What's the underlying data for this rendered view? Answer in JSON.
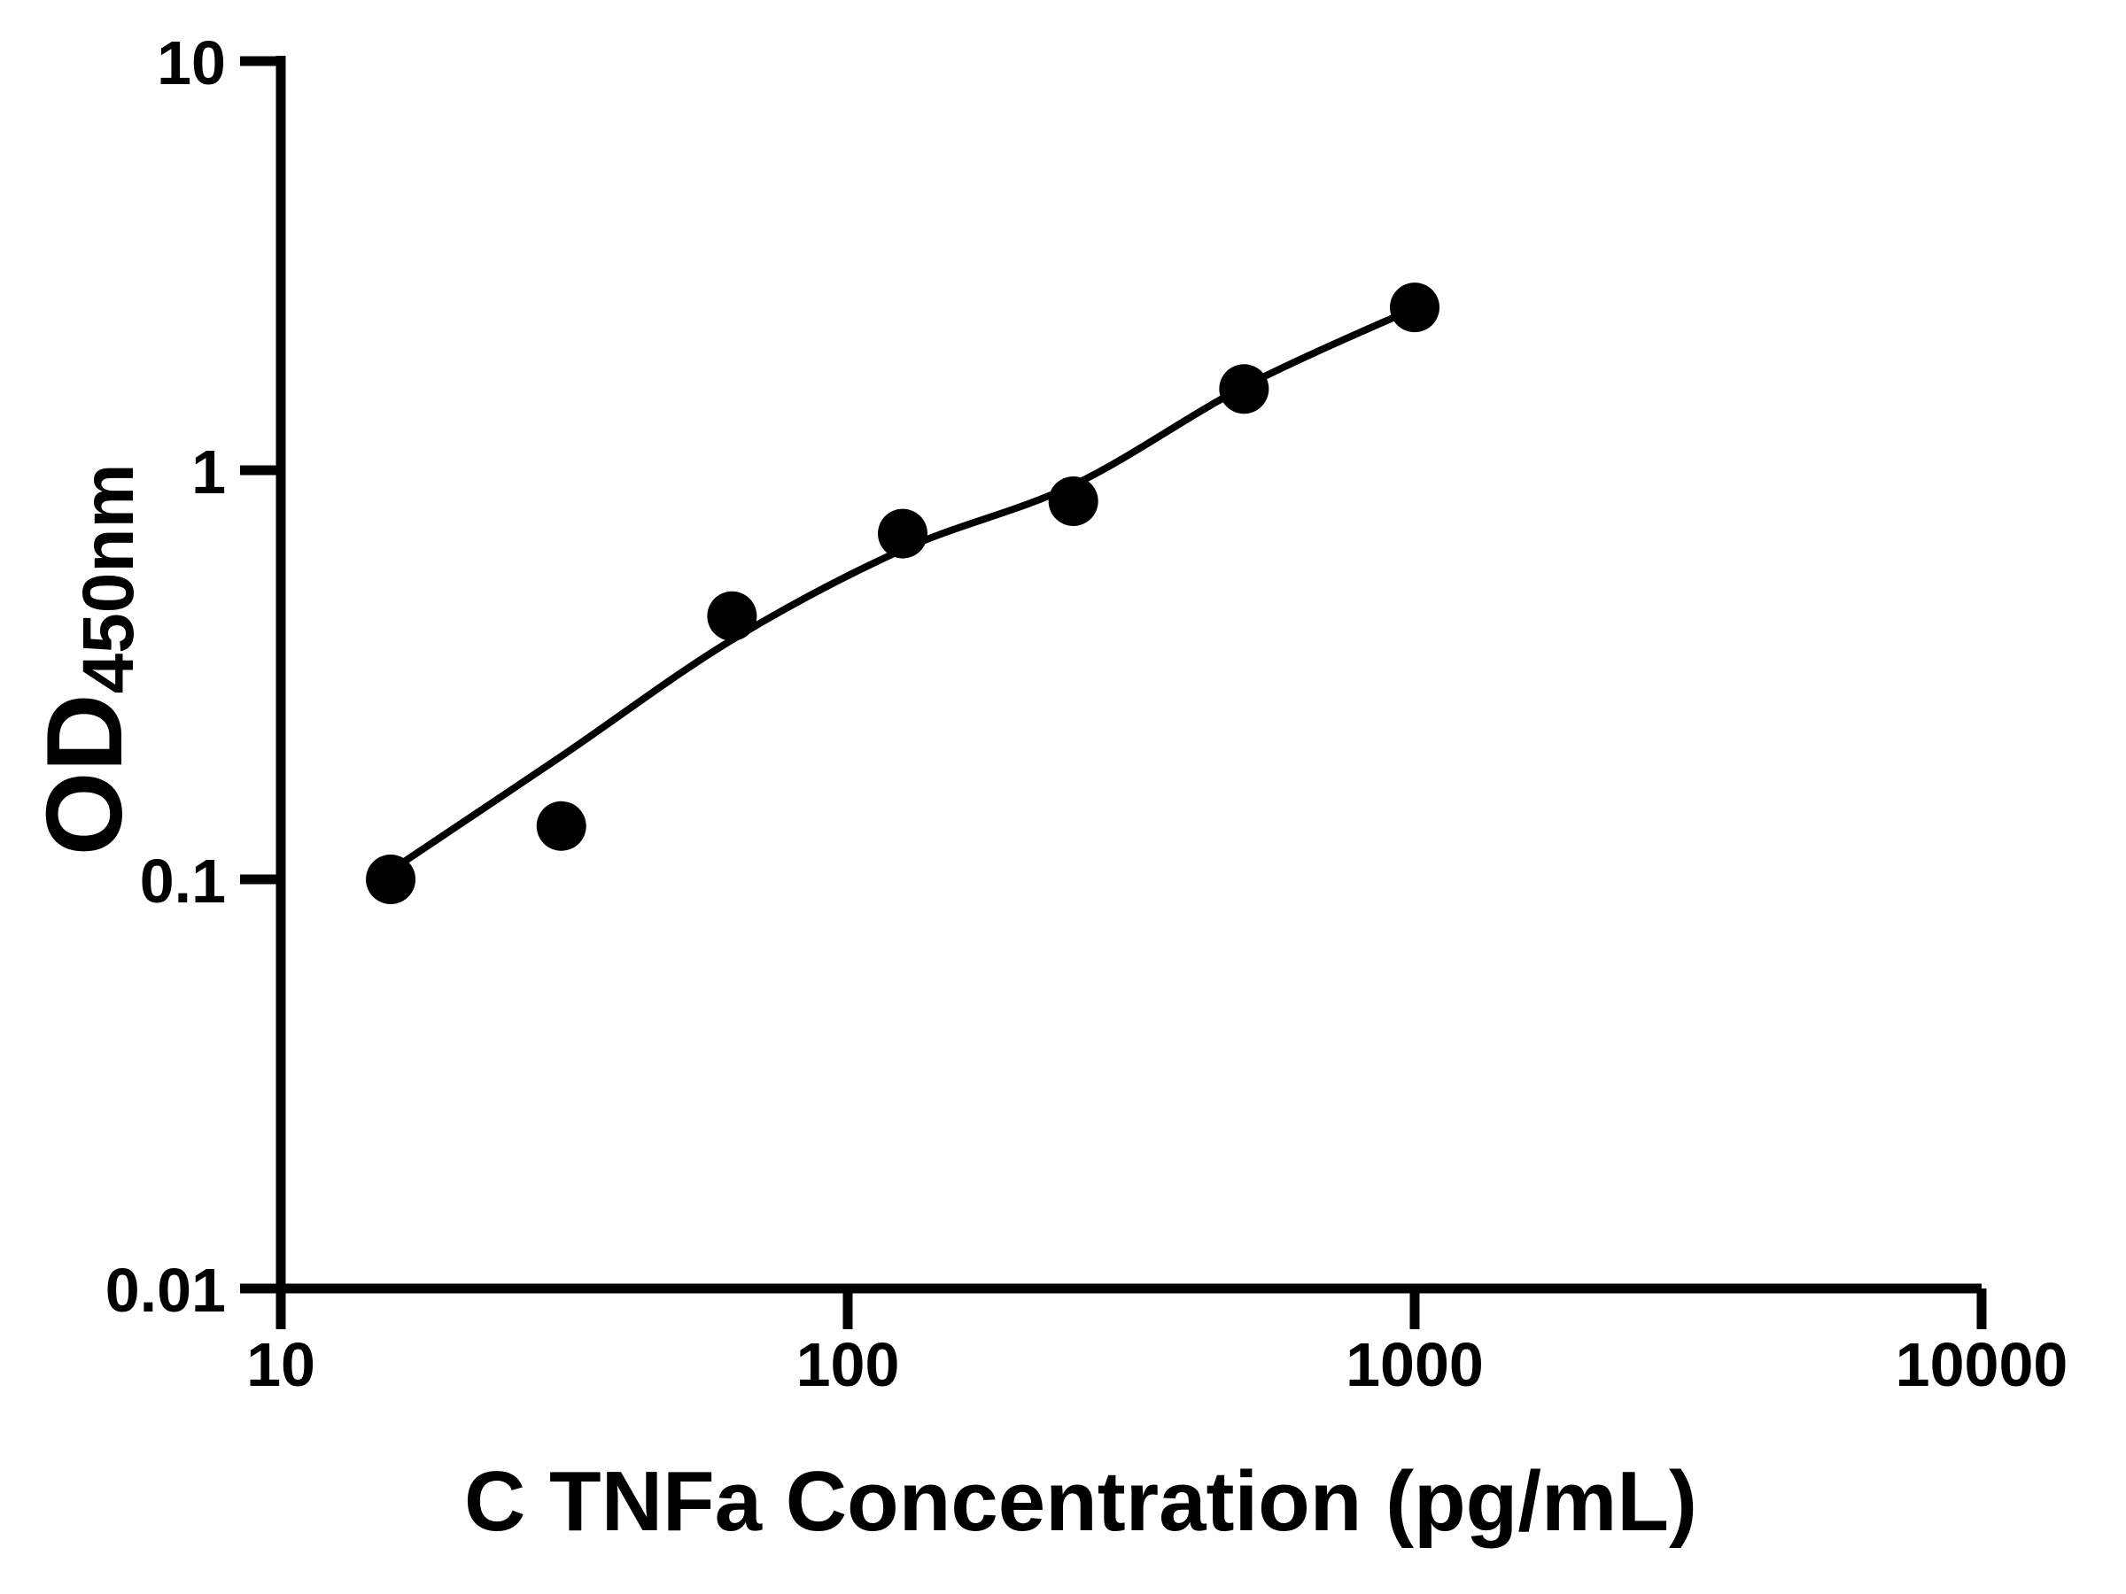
{
  "figure": {
    "background_color": "#ffffff",
    "foreground_color": "#000000",
    "title": ""
  },
  "chart_data": {
    "type": "scatter",
    "title": "",
    "xlabel": "C TNFa Concentration (pg/mL)",
    "ylabel": "OD450nm",
    "ylabel_main": "OD",
    "ylabel_sub": "450nm",
    "x_scale": "log",
    "y_scale": "log",
    "xlim": [
      10,
      10000
    ],
    "ylim": [
      0.01,
      10
    ],
    "grid": false,
    "legend": null,
    "x_ticks": [
      {
        "value": 10,
        "label": "10"
      },
      {
        "value": 100,
        "label": "100"
      },
      {
        "value": 1000,
        "label": "1000"
      },
      {
        "value": 10000,
        "label": "10000"
      }
    ],
    "y_ticks": [
      {
        "value": 0.01,
        "label": "0.01"
      },
      {
        "value": 0.1,
        "label": "0.1"
      },
      {
        "value": 1,
        "label": "1"
      },
      {
        "value": 10,
        "label": "10"
      }
    ],
    "series": [
      {
        "name": "standard-points",
        "type": "scatter",
        "marker": "circle",
        "color": "#000000",
        "points": [
          {
            "x": 15.625,
            "y": 0.1
          },
          {
            "x": 31.25,
            "y": 0.135
          },
          {
            "x": 62.5,
            "y": 0.44
          },
          {
            "x": 125,
            "y": 0.7
          },
          {
            "x": 250,
            "y": 0.84
          },
          {
            "x": 500,
            "y": 1.58
          },
          {
            "x": 1000,
            "y": 2.5
          }
        ]
      },
      {
        "name": "fitted-curve",
        "type": "line",
        "color": "#000000",
        "points": [
          {
            "x": 15.625,
            "y": 0.105
          },
          {
            "x": 31.25,
            "y": 0.2
          },
          {
            "x": 62.5,
            "y": 0.385
          },
          {
            "x": 125,
            "y": 0.64
          },
          {
            "x": 250,
            "y": 0.92
          },
          {
            "x": 500,
            "y": 1.6
          },
          {
            "x": 1000,
            "y": 2.49
          }
        ]
      }
    ]
  }
}
